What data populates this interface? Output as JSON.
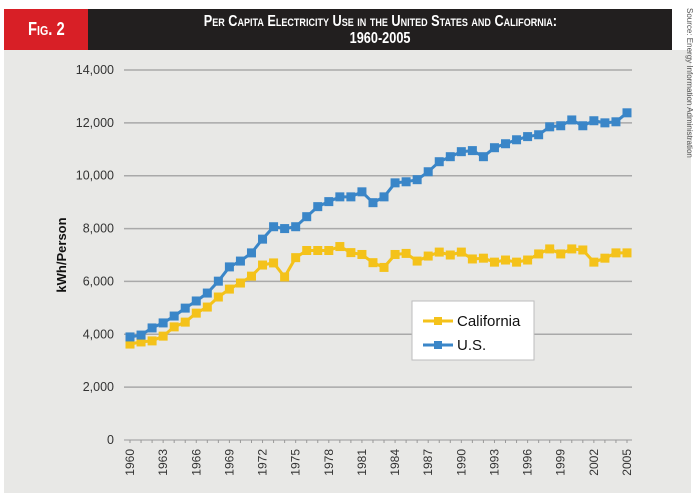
{
  "header": {
    "figure_label": "Fig. 2",
    "title_line1": "Per Capita Electricity Use in the United States and California:",
    "title_line2": "1960-2005"
  },
  "source_note": "Source: Energy Information Administration",
  "colors": {
    "california": "#f4c21a",
    "us": "#3a86c8",
    "badge": "#d81f26",
    "title_bar": "#221f1f",
    "panel": "#e8e8e6",
    "grid": "#a9a9a9"
  },
  "chart_data": {
    "type": "line",
    "title": "Per Capita Electricity Use in the United States and California: 1960-2005",
    "xlabel": "",
    "ylabel": "kWh/Person",
    "ylim": [
      0,
      14000
    ],
    "yticks": [
      0,
      2000,
      4000,
      6000,
      8000,
      10000,
      12000,
      14000
    ],
    "ytick_labels": [
      "0",
      "2,000",
      "4,000",
      "6,000",
      "8,000",
      "10,000",
      "12,000",
      "14,000"
    ],
    "xlim": [
      1960,
      2005
    ],
    "xtick_labels": [
      "1960",
      "1963",
      "1966",
      "1969",
      "1972",
      "1975",
      "1978",
      "1981",
      "1984",
      "1987",
      "1990",
      "1993",
      "1996",
      "1999",
      "2002",
      "2005"
    ],
    "grid": true,
    "legend_position": "center-right",
    "x": [
      1960,
      1961,
      1962,
      1963,
      1964,
      1965,
      1966,
      1967,
      1968,
      1969,
      1970,
      1971,
      1972,
      1973,
      1974,
      1975,
      1976,
      1977,
      1978,
      1979,
      1980,
      1981,
      1982,
      1983,
      1984,
      1985,
      1986,
      1987,
      1988,
      1989,
      1990,
      1991,
      1992,
      1993,
      1994,
      1995,
      1996,
      1997,
      1998,
      1999,
      2000,
      2001,
      2002,
      2003,
      2004,
      2005
    ],
    "series": [
      {
        "name": "California",
        "color": "#f4c21a",
        "values": [
          3630,
          3710,
          3750,
          3930,
          4280,
          4460,
          4800,
          5030,
          5410,
          5710,
          5940,
          6200,
          6620,
          6700,
          6170,
          6900,
          7170,
          7170,
          7170,
          7320,
          7090,
          7020,
          6710,
          6530,
          7020,
          7060,
          6770,
          6960,
          7110,
          7000,
          7110,
          6850,
          6880,
          6730,
          6810,
          6730,
          6810,
          7040,
          7230,
          7040,
          7230,
          7190,
          6730,
          6880,
          7080,
          7080
        ]
      },
      {
        "name": "U.S.",
        "color": "#3a86c8",
        "values": [
          3900,
          3970,
          4240,
          4430,
          4690,
          4990,
          5260,
          5560,
          6010,
          6550,
          6770,
          7080,
          7600,
          8070,
          8000,
          8070,
          8450,
          8830,
          9020,
          9200,
          9200,
          9390,
          8980,
          9200,
          9730,
          9770,
          9850,
          10150,
          10530,
          10720,
          10910,
          10950,
          10720,
          11060,
          11210,
          11360,
          11480,
          11550,
          11850,
          11890,
          12110,
          11890,
          12080,
          12000,
          12040,
          12380
        ]
      }
    ]
  }
}
